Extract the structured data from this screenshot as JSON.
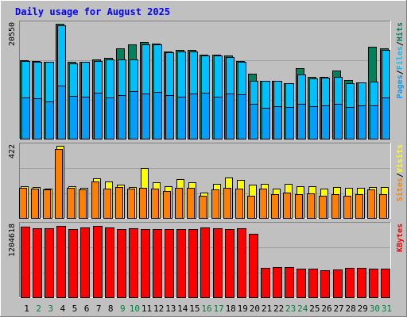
{
  "chart_data": {
    "type": "bar",
    "title": "Daily usage for August 2025",
    "x": [
      "1",
      "2",
      "3",
      "4",
      "5",
      "6",
      "7",
      "8",
      "9",
      "10",
      "11",
      "12",
      "13",
      "14",
      "15",
      "16",
      "17",
      "18",
      "19",
      "20",
      "21",
      "22",
      "23",
      "24",
      "25",
      "26",
      "27",
      "28",
      "29",
      "30",
      "31"
    ],
    "weekend_days": [
      "2",
      "3",
      "9",
      "10",
      "16",
      "17",
      "23",
      "24",
      "30",
      "31"
    ],
    "panels": [
      {
        "id": "hits-files-pages",
        "ymax_label": "20550",
        "ymax": 20550,
        "ylim": [
          0,
          20550
        ],
        "legend": [
          "Pages",
          "/",
          "Files",
          "/",
          "Hits"
        ],
        "series": [
          {
            "name": "Hits",
            "color": "#00805c",
            "values": [
              14100,
              13950,
              13850,
              20550,
              13850,
              13850,
              14250,
              14450,
              16150,
              16900,
              17300,
              17050,
              15650,
              15850,
              15850,
              15050,
              15050,
              14850,
              13900,
              11650,
              10400,
              10350,
              10050,
              12650,
              11050,
              11100,
              12250,
              10500,
              10200,
              16450,
              16150
            ]
          },
          {
            "name": "Files",
            "color": "#00c0ff",
            "values": [
              13950,
              13850,
              13750,
              20250,
              13550,
              13750,
              13950,
              14250,
              14200,
              14200,
              16950,
              16900,
              15450,
              15650,
              15650,
              14950,
              14900,
              14650,
              13850,
              10450,
              10350,
              10350,
              10000,
              11550,
              10900,
              10950,
              11100,
              9950,
              10100,
              10250,
              15950
            ]
          },
          {
            "name": "Pages",
            "color": "#00a0ff",
            "values": [
              7400,
              7300,
              6800,
              9600,
              7800,
              7600,
              8300,
              7500,
              7900,
              8600,
              8200,
              8400,
              7900,
              7600,
              8100,
              8300,
              7600,
              8200,
              8000,
              6300,
              5700,
              5900,
              5800,
              6400,
              5900,
              6100,
              6300,
              5800,
              6000,
              6100,
              7500
            ]
          }
        ]
      },
      {
        "id": "visits-sites",
        "ymax_label": "422",
        "ymax": 422,
        "ylim": [
          0,
          422
        ],
        "legend": [
          "Sites",
          "/",
          "Visits"
        ],
        "series": [
          {
            "name": "Visits",
            "color": "#ffff00",
            "values": [
              190,
              185,
              175,
              422,
              190,
              180,
              235,
              215,
              195,
              185,
              295,
              210,
              190,
              230,
              210,
              150,
              200,
              240,
              225,
              195,
              200,
              175,
              200,
              190,
              190,
              175,
              185,
              180,
              180,
              185,
              185
            ]
          },
          {
            "name": "Sites",
            "color": "#ff8000",
            "values": [
              180,
              175,
              168,
              405,
              180,
              172,
              215,
              175,
              185,
              175,
              180,
              175,
              160,
              180,
              180,
              135,
              170,
              180,
              175,
              135,
              175,
              140,
              150,
              140,
              145,
              135,
              140,
              135,
              140,
              170,
              140
            ]
          }
        ]
      },
      {
        "id": "kbytes",
        "ymax_label": "1204618",
        "ymax": 1204618,
        "ylim": [
          0,
          1204618
        ],
        "legend": [
          "KBytes"
        ],
        "series": [
          {
            "name": "KBytes",
            "color": "#ff0000",
            "values": [
              1180000,
              1150000,
              1150000,
              1190000,
              1140000,
              1170000,
              1185000,
              1170000,
              1140000,
              1150000,
              1145000,
              1140000,
              1135000,
              1140000,
              1145000,
              1160000,
              1150000,
              1145000,
              1150000,
              1060000,
              500000,
              510000,
              515000,
              490000,
              480000,
              460000,
              475000,
              500000,
              495000,
              490000,
              485000
            ]
          }
        ]
      }
    ]
  },
  "colors": {
    "background": "#c0c0c0",
    "plot_background": "#c0c0c0",
    "title": "#0000ff",
    "weekday_label": "#000000",
    "weekend_label": "#008040",
    "gridline": "#a0a0a0",
    "axis_label": "#000000"
  }
}
